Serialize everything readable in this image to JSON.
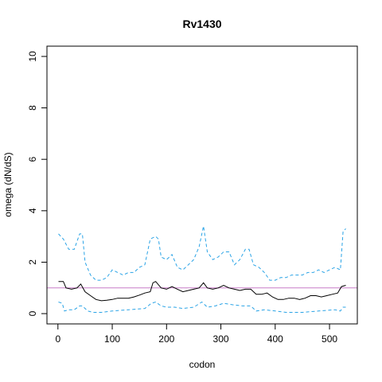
{
  "chart_data": {
    "type": "line",
    "title": "Rv1430",
    "xlabel": "codon",
    "ylabel": "omega (dN/dS)",
    "xlim": [
      -20.2,
      551.2
    ],
    "ylim": [
      -0.4,
      10.4
    ],
    "xticks": [
      0,
      100,
      200,
      300,
      400,
      500
    ],
    "yticks": [
      0,
      2,
      4,
      6,
      8,
      10
    ],
    "hline": {
      "value": 1,
      "color": "#c77cc7"
    },
    "series": [
      {
        "color": "#000000",
        "dash": false,
        "x": [
          1,
          10,
          15,
          25,
          35,
          42,
          50,
          60,
          70,
          80,
          90,
          100,
          110,
          120,
          130,
          140,
          150,
          160,
          170,
          175,
          180,
          190,
          200,
          210,
          220,
          230,
          240,
          250,
          260,
          268,
          275,
          285,
          295,
          305,
          315,
          325,
          335,
          345,
          355,
          365,
          375,
          385,
          395,
          405,
          415,
          425,
          435,
          445,
          455,
          465,
          475,
          485,
          495,
          505,
          515,
          522,
          530
        ],
        "values": [
          1.25,
          1.25,
          1.0,
          0.95,
          1.0,
          1.15,
          0.85,
          0.7,
          0.55,
          0.5,
          0.52,
          0.55,
          0.6,
          0.6,
          0.6,
          0.65,
          0.72,
          0.8,
          0.85,
          1.2,
          1.25,
          1.0,
          0.95,
          1.05,
          0.95,
          0.85,
          0.9,
          0.95,
          1.0,
          1.2,
          1.0,
          0.95,
          1.0,
          1.1,
          1.0,
          0.95,
          0.9,
          0.95,
          0.95,
          0.75,
          0.75,
          0.8,
          0.65,
          0.55,
          0.55,
          0.6,
          0.6,
          0.55,
          0.6,
          0.7,
          0.7,
          0.65,
          0.7,
          0.75,
          0.8,
          1.05,
          1.1
        ]
      },
      {
        "color": "#29a3e6",
        "dash": true,
        "x": [
          1,
          10,
          20,
          30,
          40,
          45,
          50,
          60,
          70,
          80,
          90,
          100,
          110,
          120,
          130,
          140,
          150,
          160,
          170,
          180,
          185,
          190,
          200,
          210,
          220,
          230,
          240,
          250,
          260,
          268,
          275,
          285,
          295,
          305,
          315,
          325,
          335,
          345,
          352,
          360,
          370,
          380,
          390,
          400,
          410,
          420,
          430,
          440,
          450,
          460,
          470,
          480,
          490,
          500,
          510,
          520,
          525,
          530
        ],
        "values": [
          3.1,
          2.9,
          2.5,
          2.5,
          3.1,
          3.1,
          2.0,
          1.5,
          1.3,
          1.3,
          1.4,
          1.7,
          1.6,
          1.5,
          1.6,
          1.6,
          1.8,
          1.9,
          2.9,
          3.0,
          2.9,
          2.2,
          2.1,
          2.3,
          1.8,
          1.7,
          1.9,
          2.1,
          2.6,
          3.4,
          2.4,
          2.1,
          2.2,
          2.4,
          2.4,
          1.9,
          2.1,
          2.5,
          2.5,
          1.9,
          1.8,
          1.6,
          1.3,
          1.3,
          1.4,
          1.4,
          1.5,
          1.5,
          1.5,
          1.6,
          1.6,
          1.7,
          1.6,
          1.7,
          1.8,
          1.7,
          3.2,
          3.3
        ]
      },
      {
        "color": "#29a3e6",
        "dash": true,
        "x": [
          1,
          8,
          12,
          20,
          30,
          40,
          45,
          55,
          65,
          80,
          100,
          130,
          160,
          172,
          180,
          190,
          200,
          215,
          230,
          250,
          265,
          275,
          290,
          305,
          320,
          340,
          355,
          365,
          380,
          400,
          420,
          450,
          480,
          510,
          520,
          525,
          530
        ],
        "values": [
          0.45,
          0.4,
          0.1,
          0.15,
          0.15,
          0.3,
          0.3,
          0.1,
          0.05,
          0.05,
          0.1,
          0.15,
          0.2,
          0.4,
          0.45,
          0.3,
          0.25,
          0.25,
          0.2,
          0.25,
          0.45,
          0.25,
          0.3,
          0.4,
          0.35,
          0.3,
          0.3,
          0.1,
          0.15,
          0.1,
          0.05,
          0.05,
          0.1,
          0.15,
          0.1,
          0.25,
          0.25
        ]
      }
    ]
  }
}
